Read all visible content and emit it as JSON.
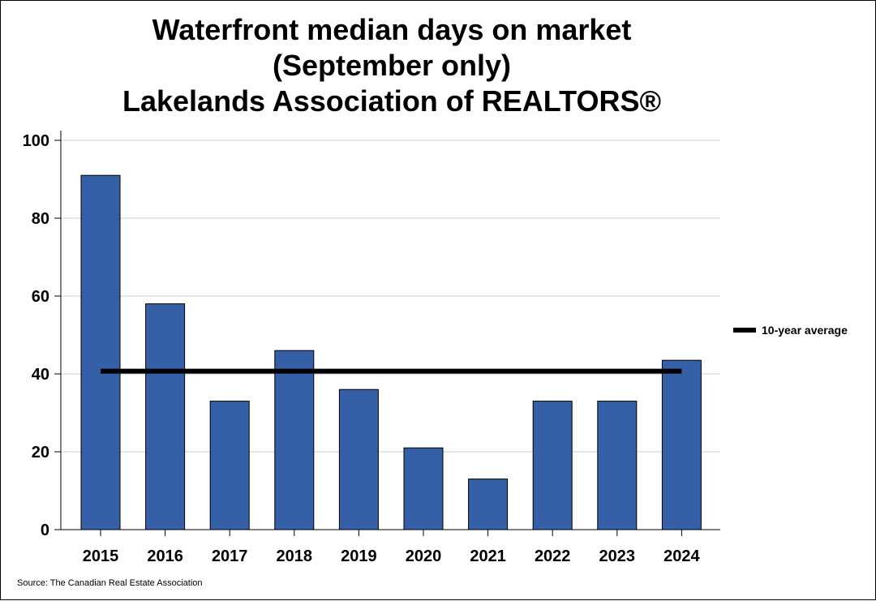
{
  "chart_data": {
    "type": "bar",
    "title_lines": [
      "Waterfront median days on market",
      "(September only)",
      "Lakelands Association of REALTORS®"
    ],
    "categories": [
      "2015",
      "2016",
      "2017",
      "2018",
      "2019",
      "2020",
      "2021",
      "2022",
      "2023",
      "2024"
    ],
    "values": [
      91,
      58,
      33,
      46,
      36,
      21,
      13,
      33,
      33,
      43.5
    ],
    "average": {
      "label": "10-year average",
      "value": 40.7
    },
    "ylim": [
      0,
      100
    ],
    "yticks": [
      0,
      20,
      40,
      60,
      80,
      100
    ],
    "grid": true,
    "legend_position": "right",
    "bar_color": "#3560A8",
    "avg_color": "#000000",
    "source": "Source: The Canadian Real Estate Association"
  }
}
